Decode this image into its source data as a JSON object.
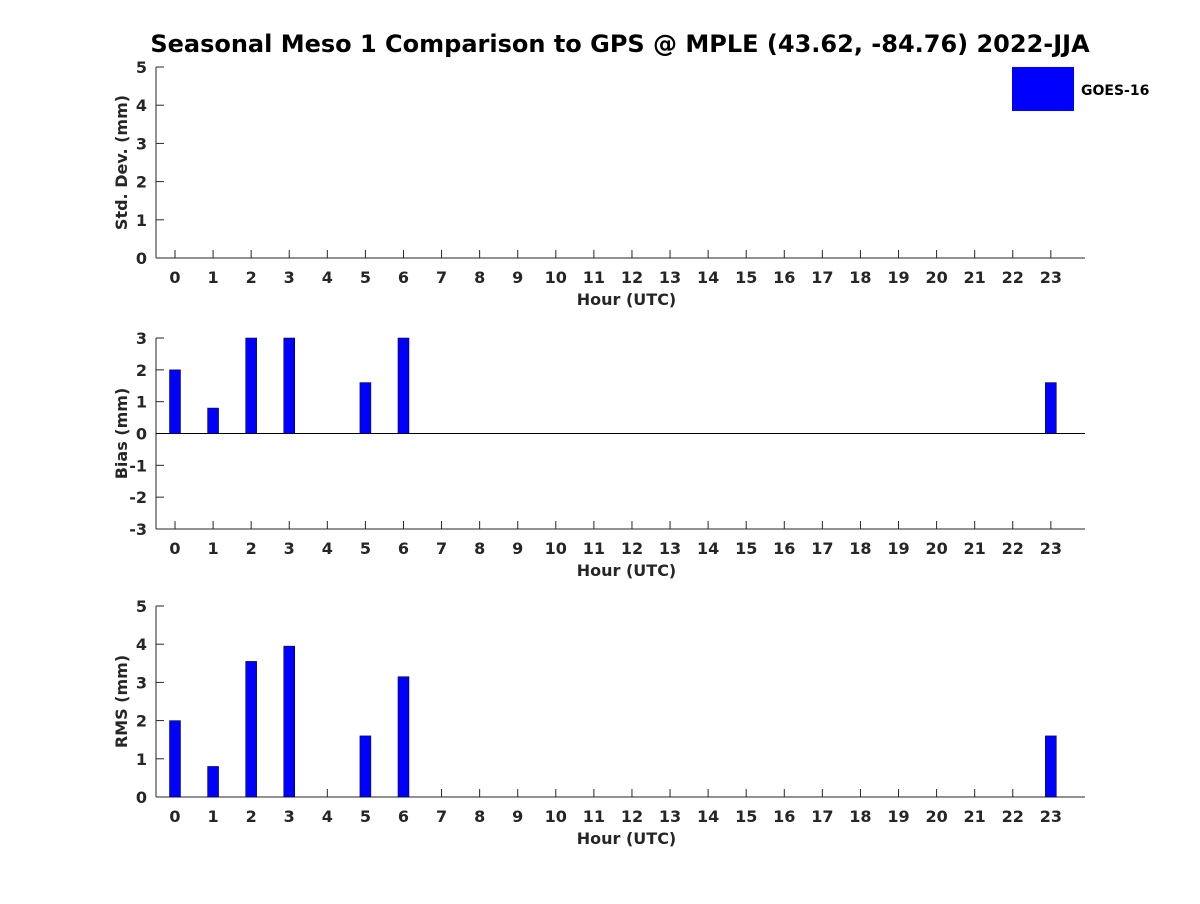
{
  "title": "Seasonal Meso 1 Comparison to GPS @ MPLE (43.62, -84.76) 2022-JJA",
  "colors": {
    "bar": "#0000ff",
    "axis": "#262626",
    "text": "#262626"
  },
  "legend": {
    "label": "GOES-16",
    "placement": "top-right"
  },
  "chart_data": [
    {
      "type": "bar",
      "ylabel": "Std. Dev. (mm)",
      "xlabel": "Hour (UTC)",
      "ylim": [
        0,
        5
      ],
      "yticks": [
        0,
        1,
        2,
        3,
        4,
        5
      ],
      "categories": [
        "0",
        "1",
        "2",
        "3",
        "4",
        "5",
        "6",
        "7",
        "8",
        "9",
        "10",
        "11",
        "12",
        "13",
        "14",
        "15",
        "16",
        "17",
        "18",
        "19",
        "20",
        "21",
        "22",
        "23"
      ],
      "series": [
        {
          "name": "GOES-16",
          "values": [
            0,
            0,
            0,
            0,
            0,
            0,
            0,
            0,
            0,
            0,
            0,
            0,
            0,
            0,
            0,
            0,
            0,
            0,
            0,
            0,
            0,
            0,
            0,
            0
          ]
        }
      ]
    },
    {
      "type": "bar",
      "ylabel": "Bias (mm)",
      "xlabel": "Hour (UTC)",
      "ylim": [
        -3,
        3
      ],
      "yticks": [
        -3,
        -2,
        -1,
        0,
        1,
        2,
        3
      ],
      "zero_line": true,
      "categories": [
        "0",
        "1",
        "2",
        "3",
        "4",
        "5",
        "6",
        "7",
        "8",
        "9",
        "10",
        "11",
        "12",
        "13",
        "14",
        "15",
        "16",
        "17",
        "18",
        "19",
        "20",
        "21",
        "22",
        "23"
      ],
      "series": [
        {
          "name": "GOES-16",
          "values": [
            2.0,
            0.8,
            3.0,
            3.0,
            0,
            1.6,
            3.0,
            0,
            0,
            0,
            0,
            0,
            0,
            0,
            0,
            0,
            0,
            0,
            0,
            0,
            0,
            0,
            0,
            1.6
          ]
        }
      ]
    },
    {
      "type": "bar",
      "ylabel": "RMS (mm)",
      "xlabel": "Hour (UTC)",
      "ylim": [
        0,
        5
      ],
      "yticks": [
        0,
        1,
        2,
        3,
        4,
        5
      ],
      "categories": [
        "0",
        "1",
        "2",
        "3",
        "4",
        "5",
        "6",
        "7",
        "8",
        "9",
        "10",
        "11",
        "12",
        "13",
        "14",
        "15",
        "16",
        "17",
        "18",
        "19",
        "20",
        "21",
        "22",
        "23"
      ],
      "series": [
        {
          "name": "GOES-16",
          "values": [
            2.0,
            0.8,
            3.55,
            3.95,
            0,
            1.6,
            3.15,
            0,
            0,
            0,
            0,
            0,
            0,
            0,
            0,
            0,
            0,
            0,
            0,
            0,
            0,
            0,
            0,
            1.6
          ]
        }
      ]
    }
  ]
}
